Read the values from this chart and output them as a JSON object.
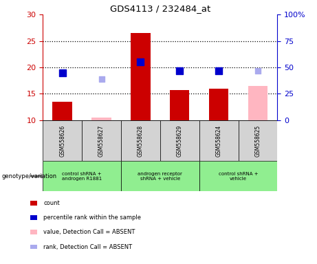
{
  "title": "GDS4113 / 232484_at",
  "samples": [
    "GSM558626",
    "GSM558627",
    "GSM558628",
    "GSM558629",
    "GSM558624",
    "GSM558625"
  ],
  "group_defs": [
    {
      "label": "control shRNA +\nandrogen R1881",
      "span": [
        0,
        2
      ]
    },
    {
      "label": "androgen receptor\nshRNA + vehicle",
      "span": [
        2,
        4
      ]
    },
    {
      "label": "control shRNA +\nvehicle",
      "span": [
        4,
        6
      ]
    }
  ],
  "bar_data": {
    "count_present": [
      13.5,
      null,
      26.5,
      15.7,
      15.9,
      null
    ],
    "count_absent": [
      null,
      10.5,
      null,
      null,
      null,
      16.5
    ],
    "rank_present": [
      19.0,
      null,
      21.0,
      19.3,
      19.3,
      null
    ],
    "rank_absent": [
      null,
      17.8,
      null,
      null,
      null,
      19.3
    ]
  },
  "ylim_left": [
    10,
    30
  ],
  "ylim_right": [
    0,
    100
  ],
  "yticks_left": [
    10,
    15,
    20,
    25,
    30
  ],
  "yticks_right": [
    0,
    25,
    50,
    75,
    100
  ],
  "ytick_labels_right": [
    "0",
    "25",
    "50",
    "75",
    "100%"
  ],
  "colors": {
    "count_present": "#CC0000",
    "count_absent": "#FFB6C1",
    "rank_present": "#0000CC",
    "rank_absent": "#AAAAEE",
    "left_axis": "#CC0000",
    "right_axis": "#0000CC",
    "sample_bg": "#D3D3D3",
    "group_bg": "#90EE90",
    "arrow": "#888888"
  },
  "dotted_lines": [
    15,
    20,
    25
  ],
  "legend_items": [
    {
      "label": "count",
      "color": "#CC0000"
    },
    {
      "label": "percentile rank within the sample",
      "color": "#0000CC"
    },
    {
      "label": "value, Detection Call = ABSENT",
      "color": "#FFB6C1"
    },
    {
      "label": "rank, Detection Call = ABSENT",
      "color": "#AAAAEE"
    }
  ]
}
